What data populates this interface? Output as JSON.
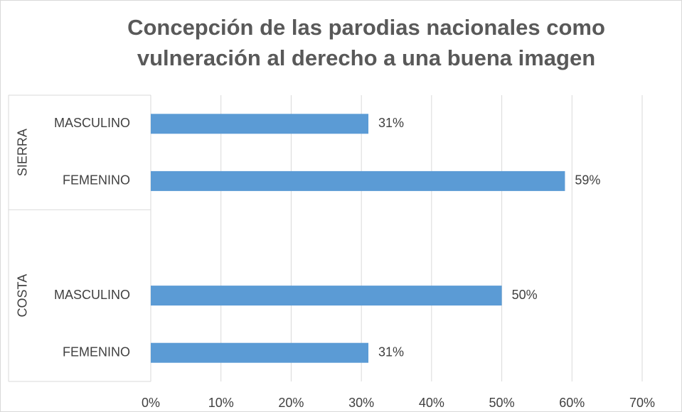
{
  "chart_data": {
    "type": "bar",
    "orientation": "horizontal",
    "title": [
      "Concepción de las parodias nacionales como",
      "vulneración al derecho a una buena imagen"
    ],
    "color": "#5b9bd5",
    "groups": [
      {
        "label": "SIERRA",
        "categories": [
          "MASCULINO",
          "FEMENINO"
        ],
        "values": [
          31,
          59
        ],
        "value_labels": [
          "31%",
          "59%"
        ]
      },
      {
        "label": "COSTA",
        "categories": [
          null,
          "MASCULINO",
          "FEMENINO"
        ],
        "values": [
          null,
          50,
          31
        ],
        "value_labels": [
          null,
          "50%",
          "31%"
        ]
      }
    ],
    "xlim": [
      0,
      70
    ],
    "xticks": [
      {
        "value": 0,
        "label": "0%"
      },
      {
        "value": 10,
        "label": "10%"
      },
      {
        "value": 20,
        "label": "20%"
      },
      {
        "value": 30,
        "label": "30%"
      },
      {
        "value": 40,
        "label": "40%"
      },
      {
        "value": 50,
        "label": "50%"
      },
      {
        "value": 60,
        "label": "60%"
      },
      {
        "value": 70,
        "label": "70%"
      }
    ],
    "grid": true
  }
}
